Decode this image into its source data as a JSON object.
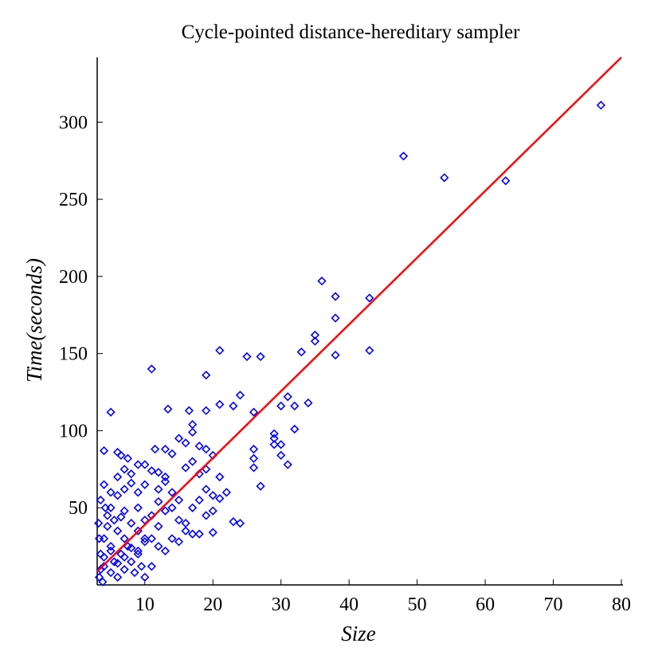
{
  "chart_data": {
    "type": "scatter",
    "title": "Cycle-pointed distance-hereditary sampler",
    "x_label": "Size",
    "y_label": "Time(seconds)",
    "xlim": [
      3,
      80
    ],
    "ylim": [
      0,
      342
    ],
    "xticks": [
      10,
      20,
      30,
      40,
      50,
      60,
      70,
      80
    ],
    "yticks": [
      50,
      100,
      150,
      200,
      250,
      300
    ],
    "series": [
      {
        "type": "scatter",
        "color": "#0000ff",
        "x": [
          77,
          48,
          54,
          63,
          36,
          38,
          43,
          38,
          35,
          35,
          33,
          43,
          38,
          21,
          25,
          27,
          11,
          19,
          24,
          34,
          31,
          30,
          32,
          5,
          23,
          21,
          26,
          19,
          16.5,
          13.4,
          32,
          29,
          29,
          30,
          29,
          30,
          26,
          26,
          26,
          31,
          27,
          23,
          20,
          17,
          4,
          6,
          6.5,
          7.5,
          10,
          11,
          9,
          12,
          13,
          11.5,
          13,
          14,
          15,
          17,
          16,
          17,
          18,
          19,
          20,
          19,
          18,
          17,
          16,
          21,
          22,
          20,
          18,
          17,
          14,
          15,
          13,
          12,
          10,
          9,
          8,
          7,
          6,
          5,
          4,
          3.5,
          5,
          7,
          9,
          11,
          13,
          15,
          16,
          14,
          12,
          11,
          10,
          9,
          8,
          7,
          6,
          5,
          4,
          3.5,
          4,
          5,
          6,
          7,
          8,
          9,
          10,
          11,
          12,
          13,
          15,
          16,
          18,
          19,
          20,
          3.2,
          3.3,
          4.5,
          5.5,
          6.5,
          7.5,
          8.5,
          9.5,
          10,
          3.8,
          4.2,
          6,
          7,
          8,
          12,
          14,
          21,
          19,
          24,
          3.5,
          4,
          5,
          6,
          7,
          8,
          9,
          10,
          3.3,
          4.5,
          5.5,
          6.5
        ],
        "values": [
          311,
          278,
          264,
          262,
          197,
          187,
          186,
          173,
          162,
          158,
          151,
          152,
          149,
          152,
          148,
          148,
          140,
          136,
          123,
          118,
          122,
          116,
          116,
          112,
          116,
          117,
          112,
          113,
          113,
          114,
          101,
          98,
          95,
          91,
          91,
          84,
          88,
          82,
          76,
          78,
          64,
          41,
          34,
          33,
          87,
          86,
          84,
          82,
          78,
          74,
          78,
          73,
          70,
          88,
          88,
          85,
          95,
          99,
          92,
          104,
          90,
          88,
          84,
          75,
          72,
          80,
          76,
          70,
          60,
          58,
          55,
          50,
          60,
          55,
          67,
          62,
          65,
          60,
          66,
          62,
          58,
          60,
          65,
          55,
          50,
          48,
          50,
          45,
          48,
          42,
          35,
          30,
          38,
          12,
          28,
          20,
          15,
          10,
          5,
          8,
          12,
          20,
          30,
          25,
          35,
          30,
          40,
          35,
          42,
          30,
          25,
          22,
          28,
          40,
          33,
          45,
          48,
          40,
          5,
          45,
          15,
          20,
          25,
          8,
          12,
          5,
          2,
          50,
          70,
          75,
          72,
          54,
          50,
          56,
          62,
          40,
          10,
          18,
          22,
          14,
          18,
          24,
          22,
          30,
          30,
          38,
          42,
          44
        ]
      },
      {
        "type": "line",
        "color": "#ff0000",
        "x": [
          3,
          80
        ],
        "values": [
          8.7,
          342
        ]
      }
    ]
  }
}
